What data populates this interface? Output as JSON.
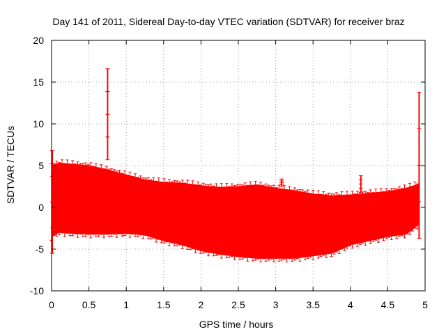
{
  "chart_data": {
    "type": "scatter",
    "title": "Day 141 of 2011, Sidereal Day-to-day VTEC variation (SDTVAR) for receiver braz",
    "xlabel": "GPS time / hours",
    "ylabel": "SDTVAR / TECUs",
    "xlim": [
      0,
      5
    ],
    "ylim": [
      -10,
      20
    ],
    "xticks": [
      "0",
      "0.5",
      "1",
      "1.5",
      "2",
      "2.5",
      "3",
      "3.5",
      "4",
      "4.5",
      "5"
    ],
    "yticks": [
      "-10",
      "-5",
      "0",
      "5",
      "10",
      "15",
      "20"
    ],
    "grid": true,
    "series_color": "#ff0000",
    "data_coverage_hours": [
      0.0,
      4.92
    ],
    "band": {
      "x": [
        0.0,
        0.1,
        0.25,
        0.5,
        0.75,
        1.0,
        1.25,
        1.5,
        1.75,
        2.0,
        2.25,
        2.5,
        2.75,
        3.0,
        3.25,
        3.5,
        3.75,
        4.0,
        4.25,
        4.5,
        4.75,
        4.92
      ],
      "upper": [
        5.0,
        5.3,
        5.2,
        5.0,
        4.5,
        3.9,
        3.3,
        3.0,
        2.9,
        2.6,
        2.4,
        2.5,
        2.7,
        2.3,
        2.0,
        1.6,
        1.4,
        1.5,
        1.7,
        1.9,
        2.3,
        2.8
      ],
      "lower": [
        -3.5,
        -3.0,
        -3.1,
        -3.2,
        -3.2,
        -3.1,
        -3.3,
        -4.0,
        -4.5,
        -5.2,
        -5.6,
        -5.9,
        -6.1,
        -6.1,
        -6.1,
        -5.8,
        -5.5,
        -4.5,
        -4.0,
        -3.5,
        -3.2,
        -2.0
      ]
    },
    "spikes": [
      {
        "x": 0.75,
        "low": 5.7,
        "high": 16.6
      },
      {
        "x": 4.92,
        "low": -3.7,
        "high": 13.8
      },
      {
        "x": 4.14,
        "low": 1.8,
        "high": 3.8
      },
      {
        "x": 3.08,
        "low": 2.5,
        "high": 3.4
      },
      {
        "x": 0.01,
        "low": -5.5,
        "high": 6.8
      }
    ]
  }
}
